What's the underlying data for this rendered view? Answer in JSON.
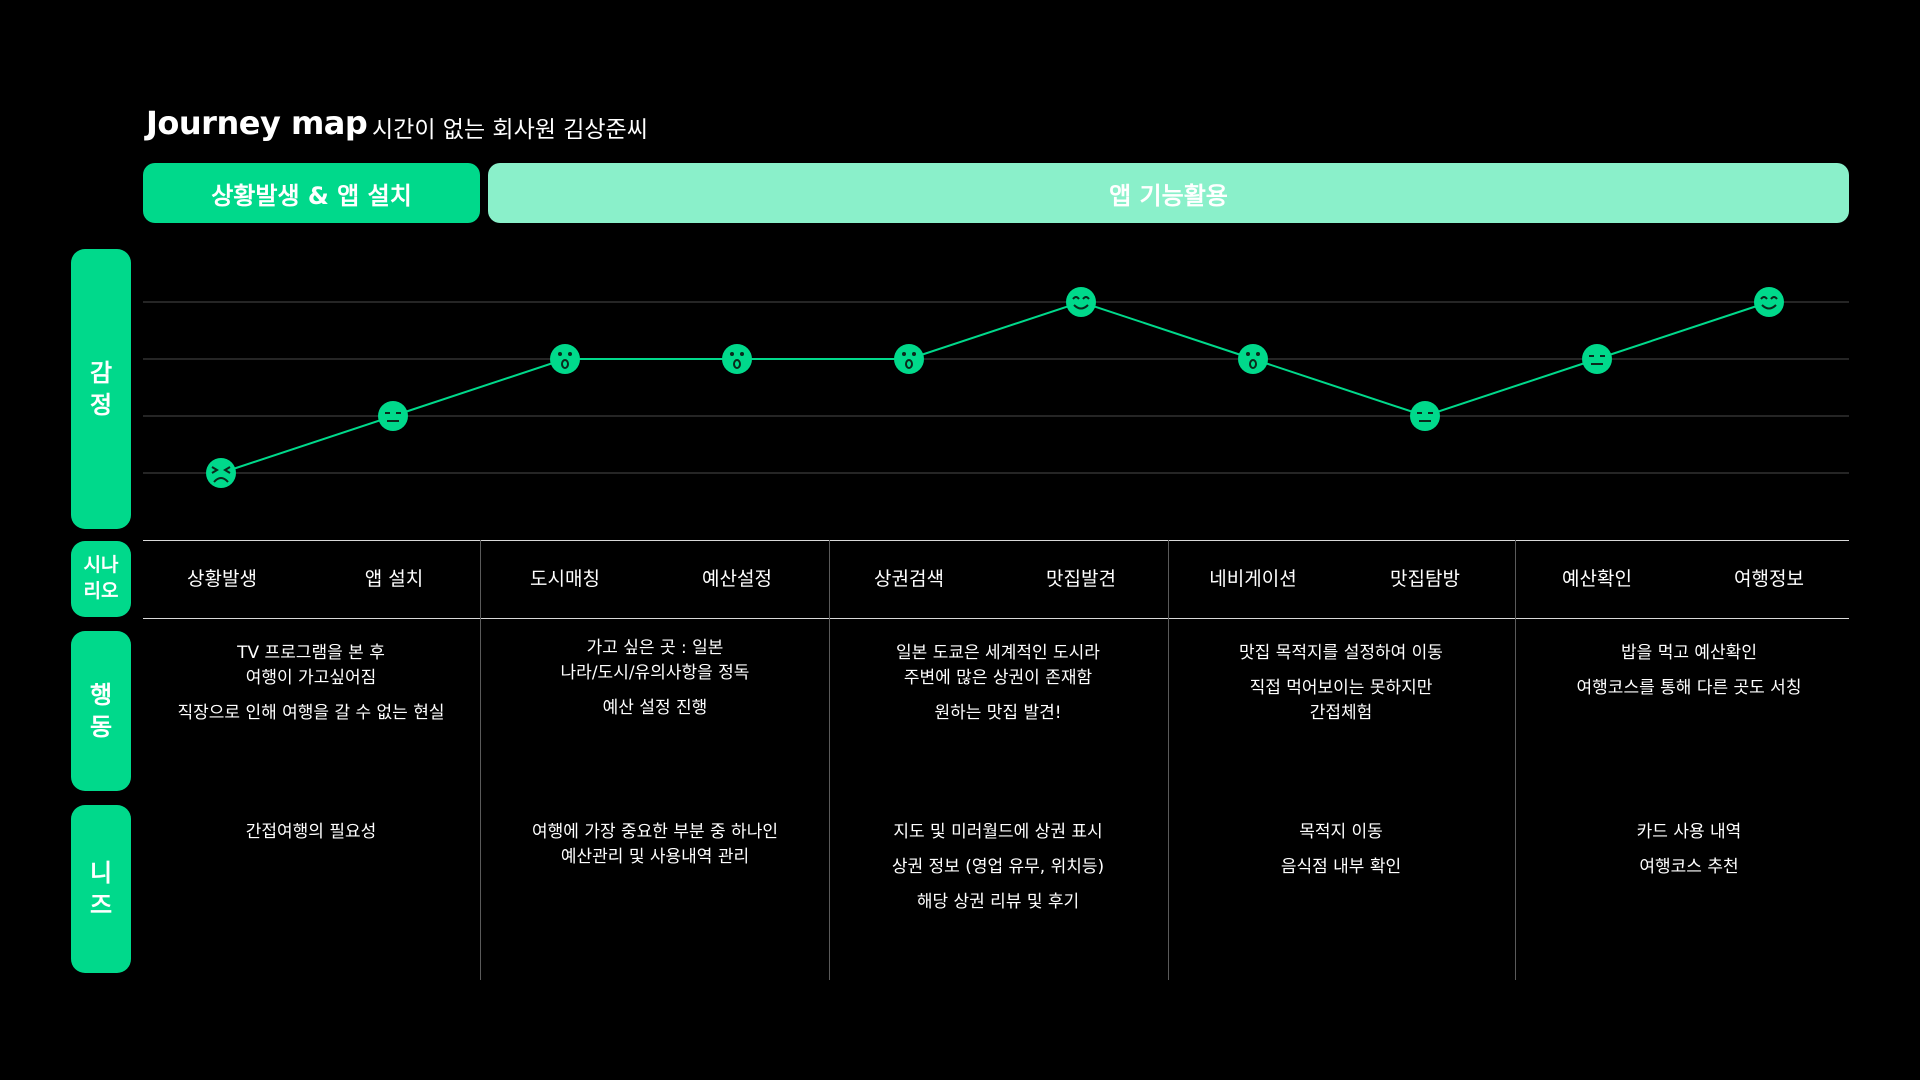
{
  "header": {
    "title": "Journey map",
    "subtitle": "시간이 없는 회사원 김상준씨"
  },
  "colors": {
    "accent": "#00d98b",
    "accent_light": "#8af0ca",
    "background": "#000000",
    "text": "#ffffff"
  },
  "phases": [
    {
      "label": "상황발생 & 앱 설치"
    },
    {
      "label": "앱 기능활용"
    }
  ],
  "row_labels": {
    "emotion": "감\n정",
    "scenario": "시나\n리오",
    "action": "행\n동",
    "needs": "니\n즈"
  },
  "chart_data": {
    "type": "line",
    "levels": 4,
    "categories": [
      "상황발생",
      "앱 설치",
      "도시매칭",
      "예산설정",
      "상권검색",
      "맛집발견",
      "네비게이션",
      "맛집탐방",
      "예산확인",
      "여행정보"
    ],
    "values": [
      1,
      2,
      3,
      3,
      3,
      4,
      3,
      2,
      3,
      4
    ],
    "faces": [
      "sad-face-icon",
      "neutral-face-icon",
      "surprised-face-icon",
      "surprised-face-icon",
      "surprised-face-icon",
      "happy-face-icon",
      "surprised-face-icon",
      "neutral-face-icon",
      "neutral-face-icon",
      "happy-face-icon"
    ]
  },
  "scenario_steps": [
    {
      "label": "상황발생"
    },
    {
      "label": "앱 설치"
    },
    {
      "label": "도시매칭"
    },
    {
      "label": "예산설정"
    },
    {
      "label": "상권검색"
    },
    {
      "label": "맛집발견"
    },
    {
      "label": "네비게이션"
    },
    {
      "label": "맛집탐방"
    },
    {
      "label": "예산확인"
    },
    {
      "label": "여행정보"
    }
  ],
  "actions": [
    {
      "items": [
        "TV 프로그램을 본 후\n여행이 가고싶어짐",
        "직장으로 인해 여행을 갈 수 없는 현실"
      ]
    },
    {
      "items": [
        "가고 싶은 곳 : 일본\n나라/도시/유의사항을 정독",
        "예산 설정 진행"
      ]
    },
    {
      "items": [
        "일본 도쿄은 세계적인 도시라\n주변에 많은 상권이 존재함",
        "원하는 맛집 발견!"
      ]
    },
    {
      "items": [
        "맛집 목적지를 설정하여 이동",
        "직접 먹어보이는 못하지만\n간접체험"
      ]
    },
    {
      "items": [
        "밥을 먹고 예산확인",
        "여행코스를 통해 다른 곳도 서칭"
      ]
    }
  ],
  "needs": [
    {
      "items": [
        "간접여행의 필요성"
      ]
    },
    {
      "items": [
        "여행에 가장 중요한 부분 중 하나인\n예산관리 및 사용내역 관리"
      ]
    },
    {
      "items": [
        "지도 및 미러월드에 상권 표시",
        "상권 정보 (영업 유무, 위치등)",
        "해당 상권 리뷰 및 후기"
      ]
    },
    {
      "items": [
        "목적지 이동",
        "음식점 내부 확인"
      ]
    },
    {
      "items": [
        "카드 사용 내역",
        "여행코스 추천"
      ]
    }
  ]
}
